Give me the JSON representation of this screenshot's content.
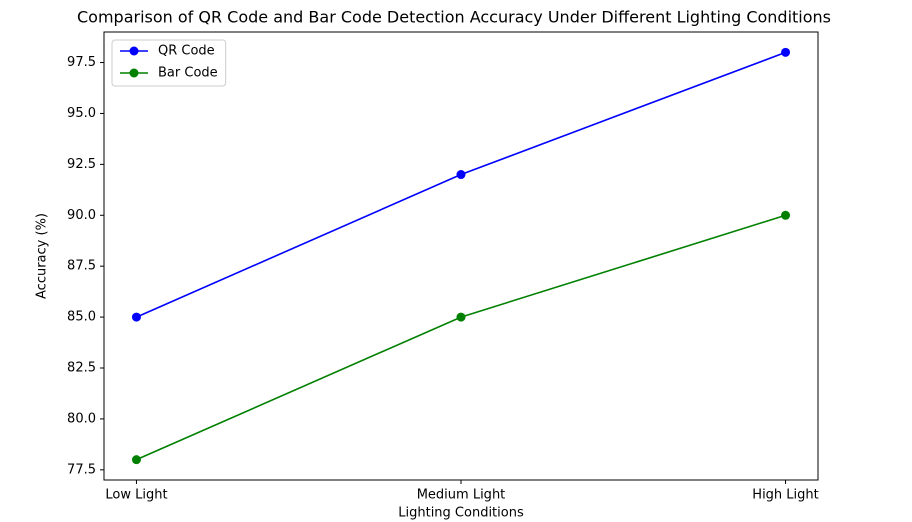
{
  "chart_data": {
    "type": "line",
    "title": "Comparison of QR Code and Bar Code Detection Accuracy Under Different Lighting Conditions",
    "xlabel": "Lighting Conditions",
    "ylabel": "Accuracy (%)",
    "categories": [
      "Low Light",
      "Medium Light",
      "High Light"
    ],
    "series": [
      {
        "name": "QR Code",
        "color": "#0000ff",
        "values": [
          85,
          92,
          98
        ]
      },
      {
        "name": "Bar Code",
        "color": "#008000",
        "values": [
          78,
          85,
          90
        ]
      }
    ],
    "ylim": [
      77,
      99
    ],
    "yticks": [
      77.5,
      {
        "value": 80,
        "label": "80.0"
      },
      82.5,
      {
        "value": 85,
        "label": "85.0"
      },
      87.5,
      {
        "value": 90,
        "label": "90.0"
      },
      92.5,
      {
        "value": 95,
        "label": "95.0"
      },
      97.5
    ],
    "grid": false,
    "legend": "upper left"
  }
}
